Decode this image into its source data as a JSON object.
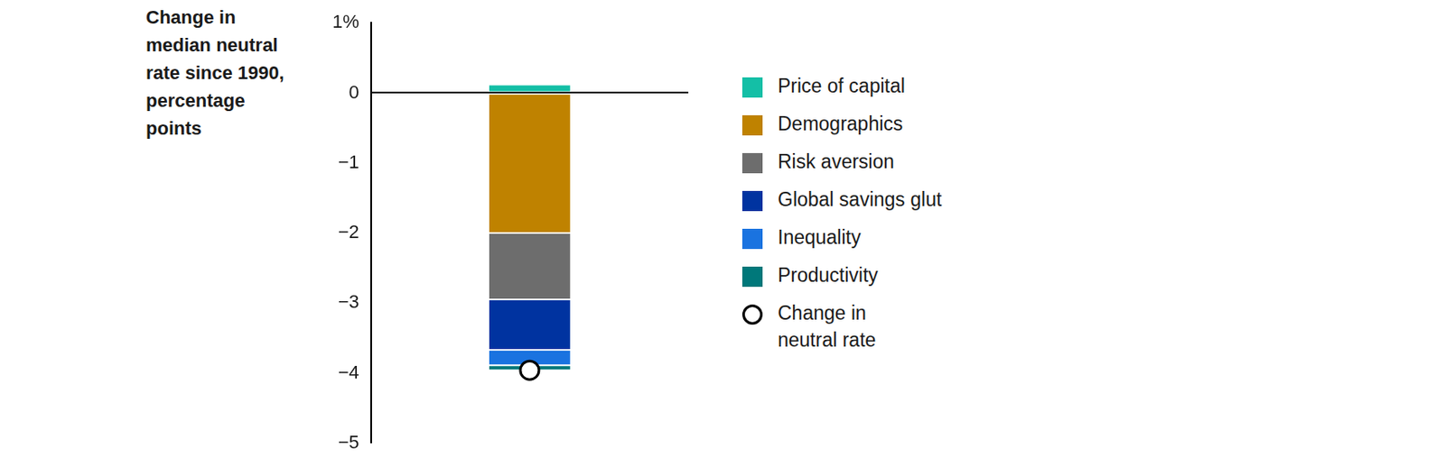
{
  "chart_data": {
    "type": "bar",
    "stacked": true,
    "y_label": [
      "Change in",
      "median neutral",
      "rate since 1990,",
      "percentage",
      "points"
    ],
    "categories": [
      null
    ],
    "series": [
      {
        "name": "Price of capital",
        "color": "#14bfa6",
        "values": [
          0.12
        ]
      },
      {
        "name": "Demographics",
        "color": "#bf8200",
        "values": [
          -2.0
        ]
      },
      {
        "name": "Risk aversion",
        "color": "#6d6d6d",
        "values": [
          -0.95
        ]
      },
      {
        "name": "Global savings glut",
        "color": "#0033a0",
        "values": [
          -0.72
        ]
      },
      {
        "name": "Inequality",
        "color": "#1a73e0",
        "values": [
          -0.22
        ]
      },
      {
        "name": "Productivity",
        "color": "#00787a",
        "values": [
          -0.07
        ]
      },
      {
        "name": "Change in neutral rate",
        "type": "scatter",
        "marker": "circle",
        "color": "#000000",
        "values": [
          -3.96
        ]
      }
    ],
    "ylim": [
      -5,
      1
    ],
    "yticks": [
      {
        "value": 1,
        "label": "1%"
      },
      0,
      {
        "value": -1,
        "label": "−1"
      },
      {
        "value": -2,
        "label": "−2"
      },
      {
        "value": -3,
        "label": "−3"
      },
      {
        "value": -4,
        "label": "−4"
      },
      {
        "value": -5,
        "label": "−5"
      }
    ],
    "grid": false,
    "legend": "right",
    "tick_labels": "y"
  }
}
